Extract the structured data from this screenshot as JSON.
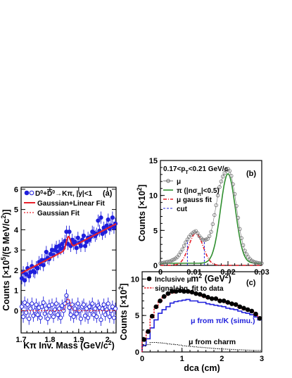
{
  "chart_data": [
    {
      "panel": "(a)",
      "type": "scatter",
      "xlabel_parts": [
        "K",
        "π",
        " Inv. Mass (GeV/c",
        "2",
        ")"
      ],
      "ylabel_parts": [
        "Counts [×10",
        "5",
        "/(5 MeV/c",
        "2",
        ")]"
      ],
      "xlim": [
        1.7,
        2.03
      ],
      "ylim": [
        -1.1,
        6.1
      ],
      "xticks": [
        1.7,
        1.8,
        1.9,
        2.0
      ],
      "yticks": [
        0,
        1,
        2,
        3,
        4,
        5,
        6
      ],
      "xtick_labels": [
        "1.7",
        "1.8",
        "1.9",
        "2"
      ],
      "ytick_labels": [
        "0",
        "1",
        "2",
        "3",
        "4",
        "5",
        "6"
      ],
      "legend": {
        "placement": "top-left",
        "title_parts": [
          "D",
          "0",
          "+",
          "D",
          "0",
          "→Kπ, |y|<1"
        ],
        "entries": [
          "Gaussian+Linear Fit",
          "Gaussian Fit"
        ]
      },
      "series": [
        {
          "name": "D0+D0bar (filled)",
          "marker": "filled-circle",
          "color": "#1f1fdc",
          "x": [
            1.7025,
            1.7075,
            1.7125,
            1.7175,
            1.7225,
            1.7275,
            1.7325,
            1.7375,
            1.7425,
            1.7475,
            1.7525,
            1.7575,
            1.7625,
            1.7675,
            1.7725,
            1.7775,
            1.7825,
            1.7875,
            1.7925,
            1.7975,
            1.8025,
            1.8075,
            1.8125,
            1.8175,
            1.8225,
            1.8275,
            1.8325,
            1.8375,
            1.8425,
            1.8475,
            1.8525,
            1.8575,
            1.8625,
            1.8675,
            1.8725,
            1.8775,
            1.8825,
            1.8875,
            1.8925,
            1.8975,
            1.9025,
            1.9075,
            1.9125,
            1.9175,
            1.9225,
            1.9275,
            1.9325,
            1.9375,
            1.9425,
            1.9475,
            1.9525,
            1.9575,
            1.9625,
            1.9675,
            1.9725,
            1.9775,
            1.9825,
            1.9875,
            1.9925,
            1.9975,
            2.0025,
            2.0075,
            2.0125,
            2.0175,
            2.0225,
            2.0275
          ],
          "y": [
            1.6,
            1.9,
            1.5,
            1.8,
            2.1,
            1.7,
            1.9,
            2.2,
            1.95,
            1.9,
            2.15,
            2.1,
            2.4,
            2.3,
            2.5,
            2.25,
            2.5,
            2.9,
            2.6,
            2.55,
            2.8,
            3.0,
            2.75,
            3.0,
            3.15,
            2.9,
            3.2,
            3.05,
            3.3,
            3.1,
            3.45,
            3.9,
            3.3,
            3.9,
            3.2,
            3.5,
            3.3,
            3.4,
            3.1,
            3.6,
            3.35,
            3.2,
            3.5,
            3.7,
            3.2,
            3.4,
            3.6,
            3.5,
            3.65,
            3.9,
            3.85,
            3.7,
            3.8,
            4.45,
            3.95,
            4.6,
            3.8,
            4.1,
            3.9,
            4.2,
            4.5,
            4.05,
            4.2,
            4.6,
            4.1,
            4.3
          ],
          "yerr": 0.3
        },
        {
          "name": "D0+D0bar residual (open)",
          "marker": "open-circle",
          "color": "#1f1fdc",
          "x": [
            1.7025,
            1.7075,
            1.7125,
            1.7175,
            1.7225,
            1.7275,
            1.7325,
            1.7375,
            1.7425,
            1.7475,
            1.7525,
            1.7575,
            1.7625,
            1.7675,
            1.7725,
            1.7775,
            1.7825,
            1.7875,
            1.7925,
            1.7975,
            1.8025,
            1.8075,
            1.8125,
            1.8175,
            1.8225,
            1.8275,
            1.8325,
            1.8375,
            1.8425,
            1.8475,
            1.8525,
            1.8575,
            1.8625,
            1.8675,
            1.8725,
            1.8775,
            1.8825,
            1.8875,
            1.8925,
            1.8975,
            1.9025,
            1.9075,
            1.9125,
            1.9175,
            1.9225,
            1.9275,
            1.9325,
            1.9375,
            1.9425,
            1.9475,
            1.9525,
            1.9575,
            1.9625,
            1.9675,
            1.9725,
            1.9775,
            1.9825,
            1.9875,
            1.9925,
            1.9975,
            2.0025,
            2.0075,
            2.0125,
            2.0175,
            2.0225,
            2.0275
          ],
          "y": [
            0.2,
            -0.3,
            0.4,
            -0.1,
            0.3,
            -0.4,
            0.1,
            0.35,
            -0.25,
            0.0,
            0.3,
            -0.2,
            0.15,
            -0.35,
            0.2,
            0.4,
            -0.15,
            0.1,
            -0.4,
            0.25,
            -0.1,
            0.3,
            -0.3,
            0.05,
            0.35,
            -0.2,
            0.1,
            -0.35,
            0.25,
            0.0,
            0.35,
            0.75,
            0.45,
            0.15,
            -0.2,
            0.3,
            -0.3,
            0.1,
            -0.15,
            0.35,
            0.0,
            -0.4,
            0.2,
            0.3,
            -0.25,
            0.1,
            -0.35,
            0.2,
            0.0,
            0.35,
            -0.2,
            0.1,
            -0.3,
            0.25,
            0.15,
            -0.45,
            0.1,
            0.3,
            -0.2,
            0.05,
            0.35,
            -0.3,
            0.0,
            0.2,
            -0.35,
            0.1
          ],
          "yerr": 0.3
        }
      ],
      "fits": [
        {
          "name": "Gaussian+Linear Fit",
          "style": "solid",
          "color": "#e8202a",
          "intercept": 1.85,
          "slope": 7.4,
          "amplitude": 0.6,
          "mean": 1.864,
          "sigma": 0.007
        },
        {
          "name": "Gaussian Fit",
          "style": "dotted",
          "color": "#e8202a",
          "intercept": 0.0,
          "slope": 0.0,
          "amplitude": 0.6,
          "mean": 1.864,
          "sigma": 0.007
        }
      ]
    },
    {
      "panel": "(b)",
      "type": "scatter",
      "annotation_parts": [
        "0.17<p",
        "T",
        "<0.21 GeV/c"
      ],
      "xlabel_parts": [
        "m",
        "2",
        " (GeV",
        "2",
        ")"
      ],
      "ylabel_parts": [
        "Counts [×10",
        "2",
        "]"
      ],
      "xlim": [
        0.0,
        0.03
      ],
      "ylim": [
        0,
        15
      ],
      "xticks": [
        0.0,
        0.01,
        0.02,
        0.03
      ],
      "yticks": [
        0,
        5,
        10,
        15
      ],
      "xtick_labels": [
        "0",
        "0.01",
        "0.02",
        "0.03"
      ],
      "ytick_labels": [
        "0",
        "5",
        "10",
        "15"
      ],
      "legend": {
        "placement": "top-left",
        "entries": [
          "μ",
          "π (|nσ",
          "π",
          "|<0.5)",
          "μ gauss fit",
          "cut"
        ]
      },
      "series": [
        {
          "name": "μ",
          "marker": "open-circle-small",
          "color": "#707070",
          "x": [
            0.0,
            0.0005,
            0.001,
            0.0015,
            0.002,
            0.0025,
            0.003,
            0.0035,
            0.004,
            0.0045,
            0.005,
            0.0055,
            0.006,
            0.0065,
            0.007,
            0.0075,
            0.008,
            0.0085,
            0.009,
            0.0095,
            0.01,
            0.0105,
            0.011,
            0.0115,
            0.012,
            0.0125,
            0.013,
            0.0135,
            0.014,
            0.0145,
            0.015,
            0.0155,
            0.016,
            0.0165,
            0.017,
            0.0175,
            0.018,
            0.0185,
            0.019,
            0.0195,
            0.02,
            0.0205,
            0.021,
            0.0215,
            0.022,
            0.0225,
            0.023,
            0.0235,
            0.024,
            0.0245,
            0.025,
            0.0255,
            0.026,
            0.0265,
            0.027,
            0.0275,
            0.028,
            0.0285,
            0.029,
            0.0295,
            0.03
          ],
          "y": [
            0.3,
            0.35,
            0.4,
            0.45,
            0.5,
            0.55,
            0.6,
            0.75,
            0.85,
            1.0,
            1.2,
            1.5,
            1.9,
            2.3,
            2.8,
            3.3,
            3.7,
            4.1,
            4.4,
            4.6,
            4.8,
            4.9,
            4.6,
            4.2,
            3.9,
            3.7,
            3.6,
            3.7,
            3.8,
            4.2,
            4.8,
            5.9,
            7.2,
            8.6,
            10.0,
            11.2,
            12.0,
            12.7,
            13.2,
            13.6,
            13.8,
            13.5,
            12.8,
            11.6,
            10.2,
            8.5,
            6.8,
            5.2,
            3.9,
            2.9,
            2.1,
            1.6,
            1.2,
            0.9,
            0.7,
            0.55,
            0.45,
            0.4,
            0.35,
            0.3,
            0.3
          ]
        }
      ],
      "curves": [
        {
          "name": "π (|nσπ|<0.5)",
          "style": "solid",
          "color": "#2f8f2f",
          "amplitude": 12.8,
          "mean": 0.02,
          "sigma": 0.0022,
          "baseline": 0.3
        },
        {
          "name": "μ gauss fit",
          "style": "dashdot",
          "color": "#e8202a",
          "amplitude": 4.6,
          "mean": 0.0105,
          "sigma": 0.0021,
          "baseline": 0.0
        }
      ],
      "cut_lines": {
        "name": "cut",
        "style": "dashed",
        "color": "#2a2ae0",
        "x": [
          0.008,
          0.013
        ]
      }
    },
    {
      "panel": "(c)",
      "type": "bar",
      "xlabel": "dca (cm)",
      "ylabel_parts": [
        "Counts [×10",
        "2",
        "]"
      ],
      "xlim": [
        0,
        3
      ],
      "ylim": [
        0,
        11
      ],
      "xticks": [
        0,
        1,
        2,
        3
      ],
      "yticks": [
        0,
        5,
        10
      ],
      "xtick_labels": [
        "0",
        "1",
        "2",
        "3"
      ],
      "ytick_labels": [
        "0",
        "5",
        "10"
      ],
      "legend": {
        "placement": "top-left",
        "entries": [
          "Inclusive μ",
          "signal+bg. fit to data"
        ]
      },
      "annotations": [
        "μ from π/K (simu.)",
        "μ from charm"
      ],
      "bin_edges": [
        0.0,
        0.1,
        0.2,
        0.3,
        0.4,
        0.5,
        0.6,
        0.7,
        0.8,
        0.9,
        1.0,
        1.1,
        1.2,
        1.3,
        1.4,
        1.5,
        1.6,
        1.7,
        1.8,
        1.9,
        2.0,
        2.1,
        2.2,
        2.3,
        2.4,
        2.5,
        2.6,
        2.7,
        2.8,
        2.9,
        3.0
      ],
      "series": [
        {
          "name": "Inclusive μ",
          "marker": "filled-circle",
          "color": "#000000",
          "x": [
            0.05,
            0.15,
            0.25,
            0.35,
            0.45,
            0.55,
            0.65,
            0.75,
            0.85,
            0.95,
            1.05,
            1.15,
            1.25,
            1.35,
            1.45,
            1.55,
            1.65,
            1.75,
            1.85,
            1.95,
            2.05,
            2.15,
            2.25,
            2.35,
            2.45,
            2.55,
            2.65,
            2.75,
            2.85,
            2.95
          ],
          "y": [
            1.7,
            2.8,
            4.9,
            6.2,
            7.0,
            7.6,
            8.0,
            8.3,
            8.3,
            8.4,
            8.3,
            8.3,
            8.2,
            8.0,
            7.9,
            7.7,
            7.5,
            7.3,
            7.3,
            7.0,
            7.0,
            6.8,
            6.6,
            6.5,
            6.2,
            6.0,
            5.8,
            5.6,
            5.2,
            4.6
          ]
        },
        {
          "name": "signal+bg. fit to data",
          "style": "dotted",
          "color": "#e8202a",
          "y": [
            1.6,
            2.7,
            4.7,
            6.1,
            6.9,
            7.5,
            7.9,
            8.1,
            8.2,
            8.3,
            8.2,
            8.2,
            8.1,
            7.9,
            7.8,
            7.6,
            7.4,
            7.3,
            7.2,
            7.0,
            6.9,
            6.7,
            6.6,
            6.4,
            6.1,
            5.9,
            5.7,
            5.5,
            5.1,
            4.6
          ]
        },
        {
          "name": "μ from π/K (simu.)",
          "style": "step",
          "color": "#1f1fdc",
          "y": [
            0.9,
            1.8,
            3.3,
            4.4,
            5.3,
            5.8,
            6.2,
            6.7,
            6.9,
            7.0,
            7.1,
            7.2,
            7.0,
            7.0,
            6.8,
            6.8,
            6.6,
            6.5,
            6.4,
            6.3,
            6.2,
            6.0,
            5.9,
            5.8,
            5.6,
            5.4,
            5.3,
            5.1,
            4.8,
            4.4
          ]
        },
        {
          "name": "μ from charm",
          "style": "dotted-step",
          "color": "#000000",
          "y": [
            0.8,
            1.0,
            1.3,
            1.3,
            1.25,
            1.2,
            1.1,
            1.05,
            1.0,
            0.95,
            0.85,
            0.8,
            0.75,
            0.7,
            0.65,
            0.6,
            0.55,
            0.5,
            0.45,
            0.42,
            0.4,
            0.38,
            0.35,
            0.32,
            0.3,
            0.28,
            0.25,
            0.22,
            0.2,
            0.2
          ]
        }
      ]
    }
  ]
}
